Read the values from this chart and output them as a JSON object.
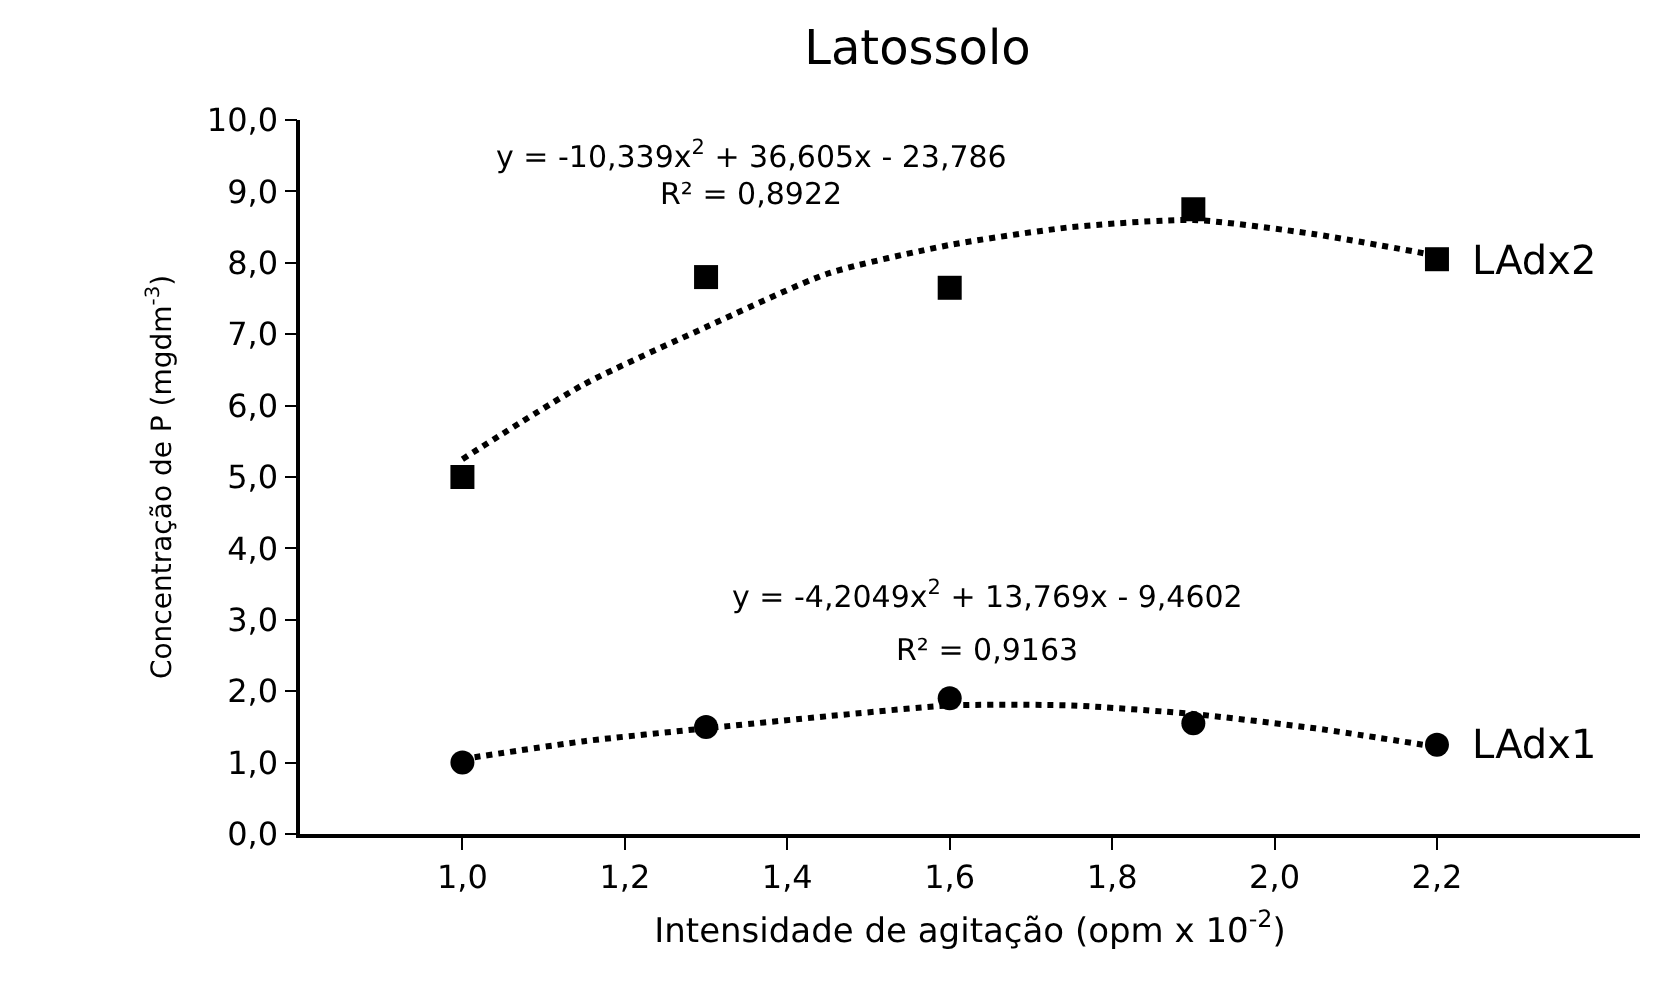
{
  "chart_data": {
    "type": "scatter",
    "title": "Latossolo",
    "xlabel": "Intensidade de agitação (opm x 10$^{-2}$)",
    "ylabel": "Concentração de P (mgdm$^{-3}$)",
    "x": [
      1.0,
      1.3,
      1.6,
      1.9,
      2.2
    ],
    "series": [
      {
        "name": "LAdx2",
        "marker": "square",
        "color": "#000000",
        "values": [
          5.0,
          7.8,
          7.65,
          8.75,
          8.05
        ]
      },
      {
        "name": "LAdx1",
        "marker": "circle",
        "color": "#000000",
        "values": [
          1.0,
          1.5,
          1.9,
          1.55,
          1.25
        ]
      },
      {
        "type": "line",
        "marker": "none",
        "line_style": "dotted",
        "color": "#000000",
        "x": [
          1.0,
          1.15,
          1.3,
          1.45,
          1.6,
          1.75,
          1.9,
          2.05,
          2.2
        ],
        "values": [
          5.25,
          6.3,
          7.1,
          7.85,
          8.25,
          8.5,
          8.6,
          8.4,
          8.1
        ]
      },
      {
        "type": "line",
        "marker": "none",
        "line_style": "dotted",
        "color": "#000000",
        "x": [
          1.0,
          1.15,
          1.3,
          1.45,
          1.6,
          1.75,
          1.9,
          2.05,
          2.2
        ],
        "values": [
          1.05,
          1.3,
          1.48,
          1.65,
          1.8,
          1.8,
          1.68,
          1.48,
          1.22
        ]
      }
    ],
    "annotations": [
      "y = -10,339x$^{2}$ + 36,605x - 23,786",
      "R² = 0,8922",
      "y = -4,2049x$^{2}$ + 13,769x - 9,4602",
      "R² = 0,9163"
    ],
    "xlim": [
      0.8,
      2.45
    ],
    "xticks": [
      {
        "value": 1.0,
        "label": "1,0"
      },
      {
        "value": 1.2,
        "label": "1,2"
      },
      {
        "value": 1.4,
        "label": "1,4"
      },
      {
        "value": 1.6,
        "label": "1,6"
      },
      {
        "value": 1.8,
        "label": "1,8"
      },
      {
        "value": 2.0,
        "label": "2,0"
      },
      {
        "value": 2.2,
        "label": "2,2"
      }
    ],
    "ylim": [
      0,
      10
    ],
    "yticks": [
      {
        "value": 0,
        "label": "0,0"
      },
      {
        "value": 1,
        "label": "1,0"
      },
      {
        "value": 2,
        "label": "2,0"
      },
      {
        "value": 3,
        "label": "3,0"
      },
      {
        "value": 4,
        "label": "4,0"
      },
      {
        "value": 5,
        "label": "5,0"
      },
      {
        "value": 6,
        "label": "6,0"
      },
      {
        "value": 7,
        "label": "7,0"
      },
      {
        "value": 8,
        "label": "8,0"
      },
      {
        "value": 9,
        "label": "9,0"
      },
      {
        "value": 10,
        "label": "10,0"
      }
    ],
    "grid": false,
    "legend": false
  }
}
